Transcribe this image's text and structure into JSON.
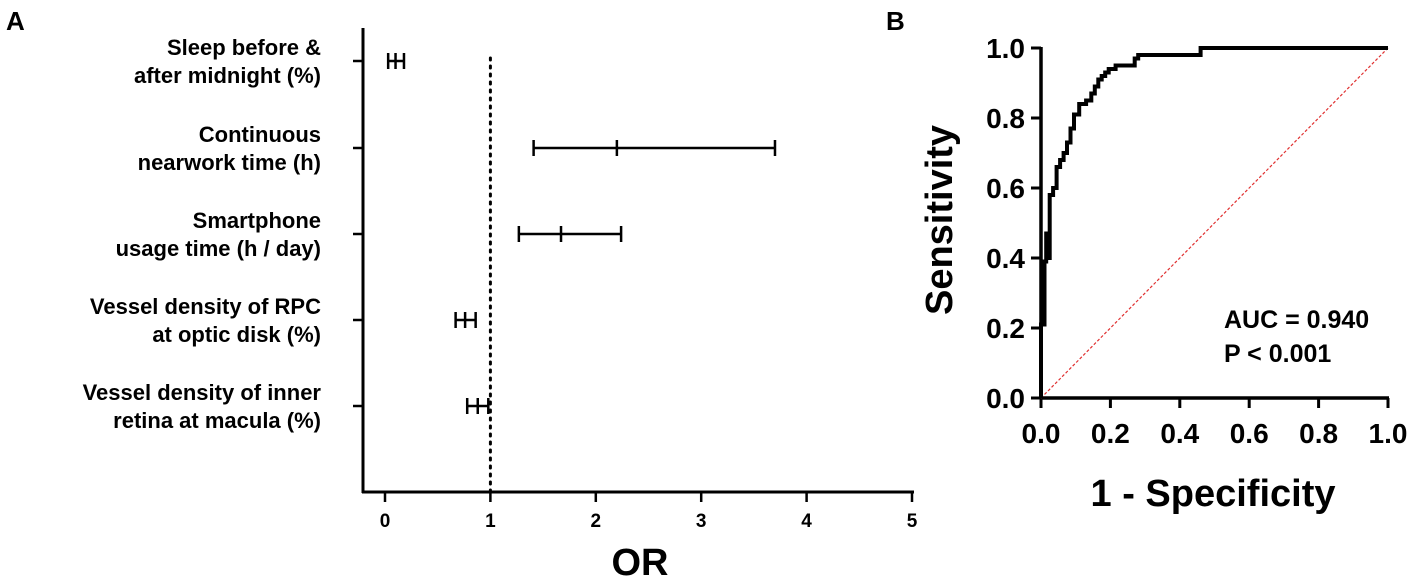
{
  "chart_data": [
    {
      "type": "forest",
      "panel_label": "A",
      "xlabel": "OR",
      "xlim": [
        -0.2,
        5
      ],
      "xticks": [
        0,
        1,
        2,
        3,
        4,
        5
      ],
      "reference_line": 1,
      "rows": [
        {
          "label_lines": [
            "Sleep before &",
            "after midnight (%)"
          ],
          "or": 0.1,
          "lower": 0.03,
          "upper": 0.18
        },
        {
          "label_lines": [
            "Continuous",
            "nearwork time  (h)"
          ],
          "or": 2.2,
          "lower": 1.41,
          "upper": 3.7
        },
        {
          "label_lines": [
            "Smartphone",
            "usage time (h / day)"
          ],
          "or": 1.67,
          "lower": 1.27,
          "upper": 2.24
        },
        {
          "label_lines": [
            "Vessel density of RPC",
            "at optic disk (%)"
          ],
          "or": 0.76,
          "lower": 0.67,
          "upper": 0.86
        },
        {
          "label_lines": [
            "Vessel density of inner",
            "retina at macula (%)"
          ],
          "or": 0.88,
          "lower": 0.78,
          "upper": 0.98
        }
      ]
    },
    {
      "type": "line",
      "panel_label": "B",
      "xlabel": "1 - Specificity",
      "ylabel": "Sensitivity",
      "xlim": [
        0,
        1
      ],
      "ylim": [
        0,
        1
      ],
      "xticks": [
        "0.0",
        "0.2",
        "0.4",
        "0.6",
        "0.8",
        "1.0"
      ],
      "yticks": [
        "0.0",
        "0.2",
        "0.4",
        "0.6",
        "0.8",
        "1.0"
      ],
      "annotations": [
        "AUC = 0.940",
        "P < 0.001"
      ],
      "reference_diagonal": {
        "from": [
          0,
          0
        ],
        "to": [
          1,
          1
        ],
        "color": "#e03030"
      },
      "series": [
        {
          "color": "#000000",
          "points": [
            [
              0,
              0
            ],
            [
              0,
              0.21
            ],
            [
              0.01,
              0.21
            ],
            [
              0.01,
              0.39
            ],
            [
              0.015,
              0.39
            ],
            [
              0.015,
              0.47
            ],
            [
              0.02,
              0.47
            ],
            [
              0.02,
              0.4
            ],
            [
              0.025,
              0.4
            ],
            [
              0.025,
              0.58
            ],
            [
              0.035,
              0.58
            ],
            [
              0.035,
              0.6
            ],
            [
              0.045,
              0.6
            ],
            [
              0.045,
              0.66
            ],
            [
              0.055,
              0.66
            ],
            [
              0.055,
              0.68
            ],
            [
              0.065,
              0.68
            ],
            [
              0.065,
              0.7
            ],
            [
              0.075,
              0.7
            ],
            [
              0.075,
              0.73
            ],
            [
              0.085,
              0.73
            ],
            [
              0.085,
              0.77
            ],
            [
              0.095,
              0.77
            ],
            [
              0.095,
              0.81
            ],
            [
              0.11,
              0.81
            ],
            [
              0.11,
              0.84
            ],
            [
              0.13,
              0.84
            ],
            [
              0.13,
              0.85
            ],
            [
              0.145,
              0.85
            ],
            [
              0.145,
              0.87
            ],
            [
              0.155,
              0.87
            ],
            [
              0.155,
              0.89
            ],
            [
              0.165,
              0.89
            ],
            [
              0.165,
              0.91
            ],
            [
              0.175,
              0.91
            ],
            [
              0.175,
              0.92
            ],
            [
              0.185,
              0.92
            ],
            [
              0.185,
              0.93
            ],
            [
              0.195,
              0.93
            ],
            [
              0.195,
              0.94
            ],
            [
              0.215,
              0.94
            ],
            [
              0.215,
              0.95
            ],
            [
              0.27,
              0.95
            ],
            [
              0.27,
              0.97
            ],
            [
              0.28,
              0.97
            ],
            [
              0.28,
              0.98
            ],
            [
              0.46,
              0.98
            ],
            [
              0.46,
              1.0
            ],
            [
              1.0,
              1.0
            ]
          ]
        }
      ]
    }
  ]
}
